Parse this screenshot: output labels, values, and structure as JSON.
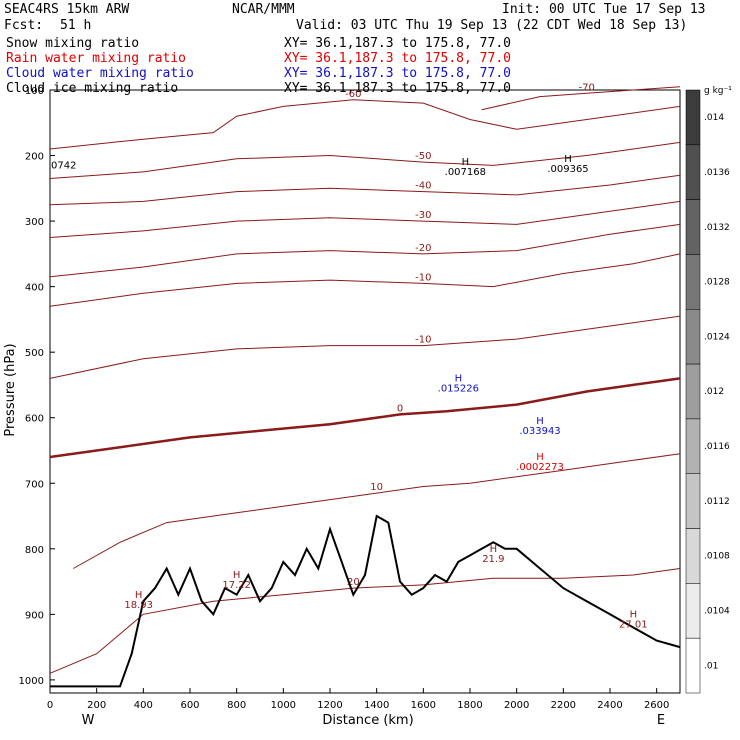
{
  "header": {
    "model": "SEAC4RS 15km ARW",
    "center": "NCAR/MMM",
    "init": "Init: 00 UTC Tue 17 Sep 13",
    "fcst_label": "Fcst:",
    "fcst_value": "51 h",
    "valid": "Valid: 03 UTC Thu 19 Sep 13 (22 CDT Wed 18 Sep 13)"
  },
  "fields": [
    {
      "name": "Snow mixing ratio",
      "xy": "XY=  36.1,187.3 to 175.8, 77.0",
      "color": "#000000"
    },
    {
      "name": "Rain water mixing ratio",
      "xy": "XY=  36.1,187.3 to 175.8, 77.0",
      "color": "#e00000"
    },
    {
      "name": "Cloud water mixing ratio",
      "xy": "XY=  36.1,187.3 to 175.8, 77.0",
      "color": "#1010c8"
    },
    {
      "name": "Cloud ice mixing ratio",
      "xy": "XY=  36.1,187.3 to 175.8, 77.0",
      "color": "#000000"
    }
  ],
  "chart_data": {
    "type": "contour",
    "xlabel": "Distance (km)",
    "ylabel": "Pressure (hPa)",
    "xlim": [
      0,
      2700
    ],
    "ylim": [
      1020,
      100
    ],
    "x_ticks": [
      0,
      200,
      400,
      600,
      800,
      1000,
      1200,
      1400,
      1600,
      1800,
      2000,
      2200,
      2400,
      2600
    ],
    "y_ticks": [
      200,
      300,
      400,
      500,
      600,
      700,
      800,
      900,
      1000
    ],
    "y_tick_100_label": "100",
    "x_ends": {
      "left": "W",
      "right": "E"
    },
    "temperature_contours": [
      {
        "level": -70,
        "points": [
          [
            1850,
            130
          ],
          [
            2100,
            110
          ],
          [
            2300,
            105
          ],
          [
            2500,
            100
          ],
          [
            2700,
            95
          ]
        ]
      },
      {
        "level": -60,
        "points": [
          [
            0,
            190
          ],
          [
            400,
            175
          ],
          [
            700,
            165
          ],
          [
            800,
            140
          ],
          [
            1000,
            125
          ],
          [
            1300,
            115
          ],
          [
            1600,
            120
          ],
          [
            1800,
            145
          ],
          [
            2000,
            160
          ],
          [
            2300,
            145
          ],
          [
            2700,
            125
          ]
        ]
      },
      {
        "level": -50,
        "points": [
          [
            0,
            235
          ],
          [
            400,
            225
          ],
          [
            800,
            205
          ],
          [
            1200,
            200
          ],
          [
            1600,
            210
          ],
          [
            1900,
            215
          ],
          [
            2300,
            200
          ],
          [
            2700,
            180
          ]
        ]
      },
      {
        "level": -40,
        "points": [
          [
            0,
            275
          ],
          [
            400,
            270
          ],
          [
            800,
            255
          ],
          [
            1200,
            250
          ],
          [
            1600,
            255
          ],
          [
            2000,
            260
          ],
          [
            2400,
            245
          ],
          [
            2700,
            230
          ]
        ]
      },
      {
        "level": -30,
        "points": [
          [
            0,
            325
          ],
          [
            400,
            315
          ],
          [
            800,
            300
          ],
          [
            1200,
            295
          ],
          [
            1600,
            300
          ],
          [
            2000,
            305
          ],
          [
            2400,
            285
          ],
          [
            2700,
            270
          ]
        ]
      },
      {
        "level": -20,
        "points": [
          [
            0,
            385
          ],
          [
            400,
            370
          ],
          [
            800,
            350
          ],
          [
            1200,
            345
          ],
          [
            1600,
            350
          ],
          [
            2000,
            345
          ],
          [
            2400,
            320
          ],
          [
            2700,
            305
          ]
        ]
      },
      {
        "level": -10,
        "points": [
          [
            0,
            430
          ],
          [
            400,
            410
          ],
          [
            800,
            395
          ],
          [
            1200,
            390
          ],
          [
            1600,
            395
          ],
          [
            1900,
            400
          ],
          [
            2200,
            380
          ],
          [
            2500,
            365
          ],
          [
            2700,
            350
          ]
        ]
      },
      {
        "level": -10,
        "points": [
          [
            0,
            540
          ],
          [
            400,
            510
          ],
          [
            800,
            495
          ],
          [
            1200,
            490
          ],
          [
            1600,
            490
          ],
          [
            2000,
            480
          ],
          [
            2400,
            460
          ],
          [
            2700,
            445
          ]
        ]
      },
      {
        "level": 0,
        "points": [
          [
            0,
            660
          ],
          [
            300,
            645
          ],
          [
            600,
            630
          ],
          [
            900,
            620
          ],
          [
            1200,
            610
          ],
          [
            1500,
            595
          ],
          [
            1700,
            590
          ],
          [
            2000,
            580
          ],
          [
            2300,
            560
          ],
          [
            2500,
            550
          ],
          [
            2700,
            540
          ]
        ]
      },
      {
        "level": 10,
        "points": [
          [
            100,
            830
          ],
          [
            300,
            790
          ],
          [
            500,
            760
          ],
          [
            800,
            745
          ],
          [
            1000,
            735
          ],
          [
            1200,
            725
          ],
          [
            1400,
            715
          ],
          [
            1600,
            705
          ],
          [
            1800,
            700
          ],
          [
            2000,
            690
          ],
          [
            2200,
            680
          ],
          [
            2500,
            665
          ],
          [
            2700,
            655
          ]
        ]
      },
      {
        "level": 20,
        "points": [
          [
            0,
            990
          ],
          [
            200,
            960
          ],
          [
            400,
            900
          ],
          [
            700,
            880
          ],
          [
            1000,
            870
          ],
          [
            1300,
            860
          ],
          [
            1600,
            855
          ],
          [
            1900,
            845
          ],
          [
            2200,
            845
          ],
          [
            2500,
            840
          ],
          [
            2700,
            830
          ]
        ]
      }
    ],
    "temperature_labels": [
      "-70",
      "-60",
      "-60",
      "-60",
      "-50",
      "-50",
      "-40",
      "-40",
      "-30",
      "-30",
      "-20",
      "-20",
      "-20",
      "-10",
      "-10",
      "-10",
      "0",
      "0",
      "0",
      "0",
      "10",
      "10",
      "10",
      "20",
      "20",
      "20"
    ],
    "snow_extremes": [
      {
        "label": ".007168",
        "mark": "H",
        "x": 1780,
        "p": 230
      },
      {
        "label": ".009365",
        "mark": "H",
        "x": 2220,
        "p": 225
      }
    ],
    "cloud_water_extremes": [
      {
        "label": ".015226",
        "mark": "H",
        "x": 1750,
        "p": 560
      },
      {
        "label": ".033943",
        "mark": "H",
        "x": 2100,
        "p": 625
      }
    ],
    "rain_extremes": [
      {
        "label": ".0002273",
        "mark": "H",
        "x": 2100,
        "p": 680
      }
    ],
    "surface_extremes": [
      {
        "label": "18.93",
        "mark": "H",
        "x": 380,
        "p": 890
      },
      {
        "label": "17.22",
        "mark": "H",
        "x": 800,
        "p": 860
      },
      {
        "label": "21.9",
        "mark": "H",
        "x": 1900,
        "p": 820
      },
      {
        "label": "27.01",
        "mark": "H",
        "x": 2500,
        "p": 920
      }
    ],
    "edge_labels": {
      "left_upper": "0742"
    },
    "terrain": [
      [
        0,
        1010
      ],
      [
        300,
        1010
      ],
      [
        350,
        960
      ],
      [
        400,
        880
      ],
      [
        450,
        860
      ],
      [
        500,
        830
      ],
      [
        550,
        870
      ],
      [
        600,
        830
      ],
      [
        650,
        880
      ],
      [
        700,
        900
      ],
      [
        750,
        860
      ],
      [
        800,
        870
      ],
      [
        850,
        840
      ],
      [
        900,
        880
      ],
      [
        950,
        860
      ],
      [
        1000,
        820
      ],
      [
        1050,
        840
      ],
      [
        1100,
        800
      ],
      [
        1150,
        830
      ],
      [
        1200,
        770
      ],
      [
        1250,
        820
      ],
      [
        1300,
        870
      ],
      [
        1350,
        840
      ],
      [
        1400,
        750
      ],
      [
        1450,
        760
      ],
      [
        1500,
        850
      ],
      [
        1550,
        870
      ],
      [
        1600,
        860
      ],
      [
        1650,
        840
      ],
      [
        1700,
        850
      ],
      [
        1750,
        820
      ],
      [
        1800,
        810
      ],
      [
        1850,
        800
      ],
      [
        1900,
        790
      ],
      [
        1950,
        800
      ],
      [
        2000,
        800
      ],
      [
        2100,
        830
      ],
      [
        2200,
        860
      ],
      [
        2300,
        880
      ],
      [
        2400,
        900
      ],
      [
        2500,
        920
      ],
      [
        2600,
        940
      ],
      [
        2700,
        950
      ]
    ],
    "colorbar": {
      "unit": "g kg⁻¹",
      "labels": [
        ".014",
        ".0136",
        ".0132",
        ".0128",
        ".0124",
        ".012",
        ".0116",
        ".0112",
        ".0108",
        ".0104",
        ".01"
      ],
      "range": [
        0.01,
        0.0144
      ]
    }
  }
}
